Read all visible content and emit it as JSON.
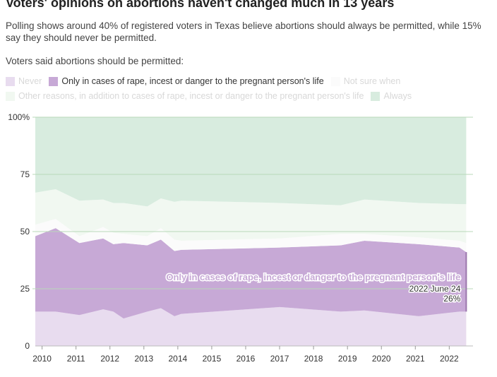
{
  "header": {
    "title": "Voters' opinions on abortions haven't changed much in 13 years",
    "subtitle": "Polling shows around 40% of registered voters in Texas believe abortions should always be permitted, while 15% say they should never be permitted.",
    "question": "Voters said abortions should be permitted:"
  },
  "legend": [
    {
      "label": "Never",
      "color": "#e8dcef",
      "emphasized": false
    },
    {
      "label": "Only in cases of rape, incest or danger to the pregnant person's life",
      "color": "#c7a9d6",
      "emphasized": true
    },
    {
      "label": "Not sure when",
      "color": "#fbfbfb",
      "emphasized": false
    },
    {
      "label": "Other reasons, in addition to cases of rape, incest or danger to the pregnant person's life",
      "color": "#f1f8f1",
      "emphasized": false
    },
    {
      "label": "Always",
      "color": "#d8ecdf",
      "emphasized": false
    }
  ],
  "annotation": {
    "series_label": "Only in cases of rape, incest or danger to the pregnant person's life",
    "date_label": "2022 June 24",
    "value_label": "26%"
  },
  "chart_data": {
    "type": "area",
    "stacked": true,
    "xlim": [
      2009.8,
      2022.7
    ],
    "ylim": [
      0,
      100
    ],
    "y_ticks": [
      0,
      25,
      50,
      75,
      100
    ],
    "y_tick_labels": [
      "0",
      "25",
      "50",
      "75",
      "100%"
    ],
    "x_ticks": [
      2010,
      2011,
      2012,
      2013,
      2014,
      2015,
      2016,
      2017,
      2018,
      2019,
      2020,
      2021,
      2022
    ],
    "x_tick_labels": [
      "2010",
      "2011",
      "2012",
      "2013",
      "2014",
      "2015",
      "2016",
      "2017",
      "2018",
      "2019",
      "2020",
      "2021",
      "2022"
    ],
    "grid": true,
    "x": [
      2009.8,
      2010.4,
      2011.1,
      2011.8,
      2012.1,
      2012.4,
      2013.1,
      2013.5,
      2013.9,
      2014.1,
      2017.0,
      2018.8,
      2019.5,
      2021.1,
      2022.3,
      2022.5
    ],
    "series": [
      {
        "name": "Never",
        "color": "#e8dcef",
        "values": [
          15,
          15,
          13.5,
          16,
          15,
          12,
          15,
          16.5,
          13,
          14,
          17,
          15,
          15.5,
          13,
          15,
          15
        ]
      },
      {
        "name": "Only in cases of rape, incest or danger to the pregnant person's life",
        "color": "#c7a9d6",
        "values": [
          33,
          36.5,
          31.5,
          31,
          29.5,
          33,
          29,
          30,
          28.5,
          28,
          26,
          29,
          30.5,
          31.5,
          28,
          26
        ]
      },
      {
        "name": "Not sure when",
        "color": "#fbfbfb",
        "values": [
          5,
          4,
          3,
          5,
          5,
          4,
          4,
          5,
          5,
          4,
          4,
          5,
          3,
          3,
          3,
          4
        ]
      },
      {
        "name": "Other reasons, in addition to cases of rape, incest or danger to the pregnant person's life",
        "color": "#f1f8f1",
        "values": [
          14,
          13,
          15.5,
          12,
          13,
          13.5,
          13,
          13,
          16.5,
          17.5,
          15.5,
          12.5,
          15,
          15,
          16,
          17
        ]
      },
      {
        "name": "Always",
        "color": "#d8ecdf",
        "values": [
          33,
          31.5,
          36.5,
          36,
          37.5,
          37.5,
          39,
          35.5,
          37,
          36.5,
          37.5,
          38.5,
          36,
          37.5,
          38,
          38
        ]
      }
    ]
  }
}
